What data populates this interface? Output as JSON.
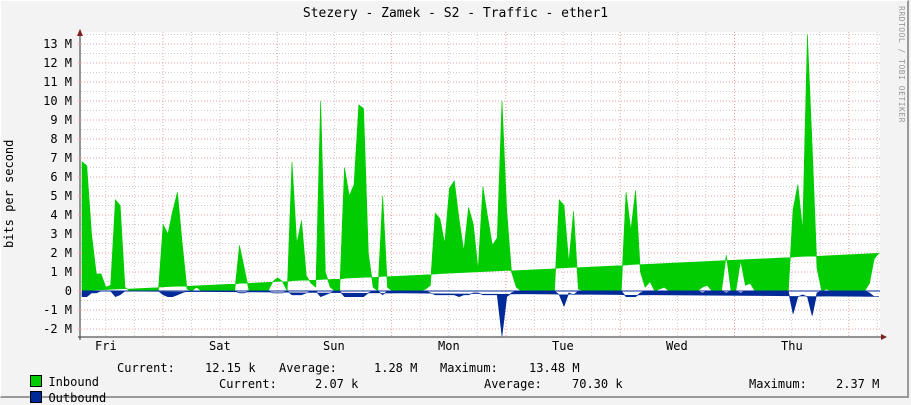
{
  "title": "Stezery - Zamek - S2 - Traffic - ether1",
  "watermark": "RRDTOOL / TOBI OETIKER",
  "colors": {
    "inbound": "#00cc00",
    "outbound": "#002a97",
    "major_grid": "#e8a0a0",
    "minor_grid": "#cccccc",
    "axis": "#555555",
    "arrow": "#7f1f1f",
    "background": "#f3f3f3",
    "plot": "#ffffff"
  },
  "chart_data": {
    "type": "area",
    "title": "Stezery - Zamek - S2 - Traffic - ether1",
    "xlabel": "",
    "ylabel": "bits per second",
    "ylim": [
      -2200000,
      13700000
    ],
    "y_ticks": [
      "13 M",
      "12 M",
      "11 M",
      "10 M",
      "9 M",
      "8 M",
      "7 M",
      "6 M",
      "5 M",
      "4 M",
      "3 M",
      "2 M",
      "1 M",
      "0",
      "-1 M",
      "-2 M"
    ],
    "y_tick_values": [
      13,
      12,
      11,
      10,
      9,
      8,
      7,
      6,
      5,
      4,
      3,
      2,
      1,
      0,
      -1,
      -2
    ],
    "x_ticks": [
      "Fri",
      "Sat",
      "Sun",
      "Mon",
      "Tue",
      "Wed",
      "Thu"
    ],
    "x_unit": "hours from start (7 days, major grid each day at 00:00)",
    "legend_position": "bottom",
    "grid": true,
    "x": [
      0,
      1,
      2,
      3,
      4,
      5,
      6,
      7,
      8,
      9,
      10,
      11,
      12,
      13,
      14,
      15,
      16,
      17,
      18,
      19,
      20,
      21,
      22,
      23,
      24,
      25,
      26,
      27,
      28,
      29,
      30,
      31,
      32,
      33,
      34,
      35,
      36,
      37,
      38,
      39,
      40,
      41,
      42,
      43,
      44,
      45,
      46,
      47,
      48,
      49,
      50,
      51,
      52,
      53,
      54,
      55,
      56,
      57,
      58,
      59,
      60,
      61,
      62,
      63,
      64,
      65,
      66,
      67,
      68,
      69,
      70,
      71,
      72,
      73,
      74,
      75,
      76,
      77,
      78,
      79,
      80,
      81,
      82,
      83,
      84,
      85,
      86,
      87,
      88,
      89,
      90,
      91,
      92,
      93,
      94,
      95,
      96,
      97,
      98,
      99,
      100,
      101,
      102,
      103,
      104,
      105,
      106,
      107,
      108,
      109,
      110,
      111,
      112,
      113,
      114,
      115,
      116,
      117,
      118,
      119,
      120,
      121,
      122,
      123,
      124,
      125,
      126,
      127,
      128,
      129,
      130,
      131,
      132,
      133,
      134,
      135,
      136,
      137,
      138,
      139,
      140,
      141,
      142,
      143,
      144,
      145,
      146,
      147,
      148,
      149,
      150,
      151,
      152,
      153,
      154,
      155,
      156,
      157,
      158,
      159,
      160,
      161,
      162,
      163,
      164,
      165,
      166,
      167
    ],
    "series": [
      {
        "name": "Inbound",
        "unit": "Mbps",
        "values": [
          6.8,
          6.6,
          3.0,
          0.9,
          0.9,
          0.2,
          0.3,
          4.8,
          4.5,
          0.2,
          0.0,
          0.0,
          0.0,
          0.0,
          0.0,
          0.0,
          0.0,
          3.5,
          3.0,
          4.2,
          5.2,
          2.5,
          0.1,
          0.0,
          0.2,
          0.0,
          0.0,
          0.0,
          0.0,
          0.0,
          0.0,
          0.0,
          0.0,
          2.4,
          1.2,
          0.0,
          0.0,
          0.0,
          0.0,
          0.0,
          0.5,
          0.7,
          0.5,
          0.0,
          6.8,
          2.5,
          3.7,
          0.8,
          0.4,
          0.2,
          10.0,
          1.0,
          0.2,
          0.0,
          0.0,
          6.5,
          5.0,
          5.6,
          9.8,
          9.6,
          2.0,
          0.2,
          0.0,
          5.0,
          0.2,
          0.0,
          0.0,
          0.0,
          0.0,
          0.0,
          0.0,
          0.0,
          0.1,
          0.3,
          4.1,
          3.8,
          2.5,
          5.4,
          5.8,
          3.8,
          2.1,
          4.4,
          3.5,
          1.1,
          5.5,
          3.9,
          2.4,
          2.8,
          10.0,
          4.2,
          1.0,
          0.2,
          0.0,
          0.0,
          0.0,
          0.0,
          0.0,
          0.0,
          0.0,
          0.0,
          4.8,
          4.5,
          1.5,
          4.2,
          0.1,
          0.0,
          0.0,
          0.0,
          0.0,
          0.0,
          0.0,
          0.0,
          0.0,
          0.0,
          5.2,
          3.2,
          5.3,
          1.0,
          0.2,
          0.5,
          0.0,
          0.1,
          0.2,
          0.0,
          0.0,
          0.0,
          0.0,
          0.0,
          0.0,
          0.0,
          0.2,
          0.3,
          0.0,
          0.0,
          0.0,
          1.9,
          0.0,
          0.0,
          1.6,
          0.3,
          0.4,
          0.0,
          0.0,
          0.0,
          0.0,
          0.0,
          0.0,
          0.0,
          0.0,
          4.3,
          5.6,
          3.2,
          13.5,
          7.6,
          1.2,
          0.0,
          0.1,
          0.0,
          0.0,
          0.0,
          0.0,
          0.0,
          0.0,
          0.0,
          0.0,
          0.4,
          1.7,
          2.0,
          1.3,
          0.1,
          0.0,
          0.0,
          0.0,
          0.0,
          1.0,
          1.3,
          0.3
        ]
      },
      {
        "name": "Outbound",
        "unit": "Mbps",
        "values": [
          -0.3,
          -0.3,
          -0.1,
          -0.1,
          0.0,
          0.0,
          0.0,
          -0.3,
          -0.2,
          0.0,
          0.0,
          0.0,
          0.0,
          0.0,
          0.0,
          0.0,
          0.0,
          -0.2,
          -0.3,
          -0.3,
          -0.2,
          -0.1,
          0.0,
          0.0,
          0.0,
          0.0,
          0.0,
          0.0,
          0.0,
          0.0,
          0.0,
          0.0,
          0.0,
          -0.1,
          -0.1,
          0.0,
          0.0,
          0.0,
          0.0,
          0.0,
          -0.1,
          -0.1,
          -0.1,
          0.0,
          -0.2,
          -0.2,
          -0.2,
          -0.1,
          0.0,
          0.0,
          -0.3,
          -0.2,
          -0.1,
          0.0,
          0.0,
          -0.3,
          -0.3,
          -0.3,
          -0.3,
          -0.3,
          -0.1,
          0.0,
          0.0,
          -0.2,
          0.0,
          0.0,
          0.0,
          0.0,
          0.0,
          0.0,
          0.0,
          0.0,
          0.0,
          -0.1,
          -0.2,
          -0.2,
          -0.2,
          -0.2,
          -0.2,
          -0.3,
          -0.2,
          -0.2,
          -0.1,
          -0.1,
          -0.2,
          -0.2,
          -0.2,
          -0.2,
          -2.37,
          -0.3,
          -0.1,
          0.0,
          0.0,
          0.0,
          0.0,
          0.0,
          0.0,
          0.0,
          0.0,
          0.0,
          -0.2,
          -0.8,
          -0.1,
          -0.2,
          0.0,
          0.0,
          0.0,
          0.0,
          0.0,
          0.0,
          0.0,
          0.0,
          0.0,
          0.0,
          -0.3,
          -0.3,
          -0.3,
          -0.1,
          0.0,
          0.0,
          0.0,
          0.0,
          0.0,
          0.0,
          0.0,
          0.0,
          0.0,
          0.0,
          0.0,
          0.0,
          -0.1,
          0.0,
          0.0,
          0.0,
          0.0,
          -0.1,
          0.0,
          0.0,
          -0.1,
          0.0,
          0.0,
          0.0,
          0.0,
          0.0,
          0.0,
          0.0,
          0.0,
          0.0,
          0.0,
          -1.2,
          -0.3,
          -0.2,
          -0.3,
          -1.3,
          -0.1,
          0.0,
          0.0,
          0.0,
          0.0,
          0.0,
          0.0,
          0.0,
          0.0,
          0.0,
          0.0,
          -0.1,
          -0.3,
          -0.3,
          -0.3,
          0.0,
          0.0,
          0.0,
          0.0,
          0.0,
          -0.1,
          -0.1,
          0.0
        ]
      }
    ]
  },
  "axis": {
    "ylabel": "bits per second",
    "y_ticks": [
      "13 M",
      "12 M",
      "11 M",
      "10 M",
      "9 M",
      "8 M",
      "7 M",
      "6 M",
      "5 M",
      "4 M",
      "3 M",
      "2 M",
      "1 M",
      "0",
      "-1 M",
      "-2 M"
    ],
    "x_ticks": [
      "Fri",
      "Sat",
      "Sun",
      "Mon",
      "Tue",
      "Wed",
      "Thu"
    ]
  },
  "legend": {
    "inbound": {
      "label": "Inbound",
      "current_label": "Current:",
      "current": "12.15 k",
      "average_label": "Average:",
      "average": "1.28 M",
      "maximum_label": "Maximum:",
      "maximum": "13.48 M"
    },
    "outbound": {
      "label": "Outbound",
      "current_label": "Current:",
      "current": "2.07 k",
      "average_label": "Average:",
      "average": "70.30 k",
      "maximum_label": "Maximum:",
      "maximum": "2.37 M"
    }
  }
}
